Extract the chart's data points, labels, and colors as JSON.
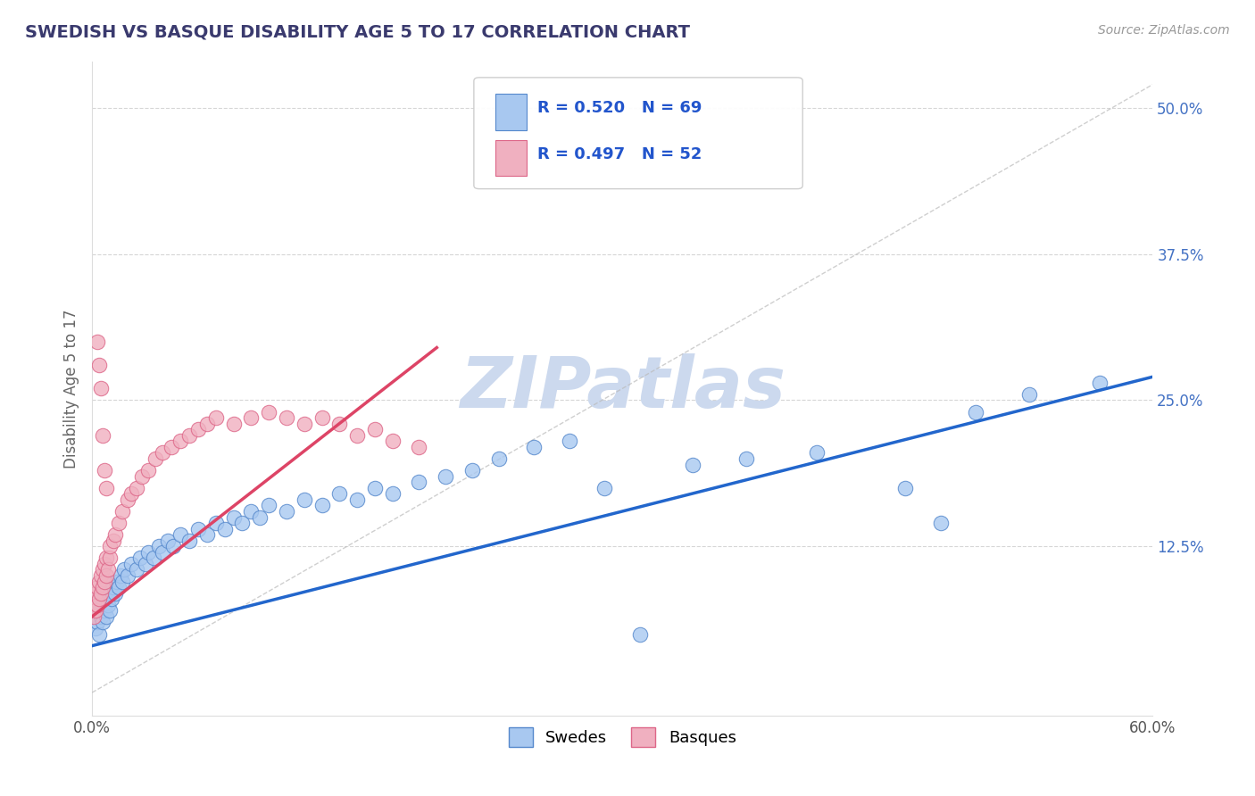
{
  "title": "SWEDISH VS BASQUE DISABILITY AGE 5 TO 17 CORRELATION CHART",
  "source_text": "Source: ZipAtlas.com",
  "ylabel": "Disability Age 5 to 17",
  "xlim": [
    0.0,
    0.6
  ],
  "ylim": [
    -0.02,
    0.54
  ],
  "ytick_labels": [
    "12.5%",
    "25.0%",
    "37.5%",
    "50.0%"
  ],
  "ytick_values": [
    0.125,
    0.25,
    0.375,
    0.5
  ],
  "title_color": "#3a3a6e",
  "title_fontsize": 14,
  "blue_color": "#a8c8f0",
  "pink_color": "#f0b0c0",
  "blue_edge": "#5588cc",
  "pink_edge": "#dd6688",
  "legend_R_blue": "R = 0.520",
  "legend_N_blue": "N = 69",
  "legend_R_pink": "R = 0.497",
  "legend_N_pink": "N = 52",
  "legend_label_blue": "Swedes",
  "legend_label_pink": "Basques",
  "blue_trend_x": [
    0.0,
    0.6
  ],
  "blue_trend_y": [
    0.04,
    0.27
  ],
  "pink_trend_x": [
    0.0,
    0.195
  ],
  "pink_trend_y": [
    0.065,
    0.295
  ],
  "ref_line_x": [
    0.0,
    0.6
  ],
  "ref_line_y": [
    0.0,
    0.52
  ],
  "background_color": "#ffffff",
  "grid_color": "#cccccc",
  "axis_label_color": "#666666",
  "watermark_color": "#ccd9ee",
  "watermark_text": "ZIPatlas",
  "source_color": "#999999",
  "tick_color": "#4472c4",
  "swedes_x": [
    0.002,
    0.003,
    0.004,
    0.004,
    0.005,
    0.005,
    0.006,
    0.006,
    0.007,
    0.007,
    0.008,
    0.008,
    0.009,
    0.009,
    0.01,
    0.01,
    0.011,
    0.012,
    0.013,
    0.014,
    0.015,
    0.016,
    0.017,
    0.018,
    0.02,
    0.022,
    0.025,
    0.027,
    0.03,
    0.032,
    0.035,
    0.038,
    0.04,
    0.043,
    0.046,
    0.05,
    0.055,
    0.06,
    0.065,
    0.07,
    0.075,
    0.08,
    0.085,
    0.09,
    0.095,
    0.1,
    0.11,
    0.12,
    0.13,
    0.14,
    0.15,
    0.16,
    0.17,
    0.185,
    0.2,
    0.215,
    0.23,
    0.25,
    0.27,
    0.29,
    0.31,
    0.34,
    0.37,
    0.41,
    0.46,
    0.5,
    0.53,
    0.57,
    0.48
  ],
  "swedes_y": [
    0.055,
    0.06,
    0.05,
    0.07,
    0.065,
    0.08,
    0.06,
    0.075,
    0.07,
    0.085,
    0.065,
    0.09,
    0.075,
    0.095,
    0.07,
    0.085,
    0.08,
    0.09,
    0.085,
    0.095,
    0.09,
    0.1,
    0.095,
    0.105,
    0.1,
    0.11,
    0.105,
    0.115,
    0.11,
    0.12,
    0.115,
    0.125,
    0.12,
    0.13,
    0.125,
    0.135,
    0.13,
    0.14,
    0.135,
    0.145,
    0.14,
    0.15,
    0.145,
    0.155,
    0.15,
    0.16,
    0.155,
    0.165,
    0.16,
    0.17,
    0.165,
    0.175,
    0.17,
    0.18,
    0.185,
    0.19,
    0.2,
    0.21,
    0.215,
    0.175,
    0.05,
    0.195,
    0.2,
    0.205,
    0.175,
    0.24,
    0.255,
    0.265,
    0.145
  ],
  "basques_x": [
    0.001,
    0.002,
    0.002,
    0.003,
    0.003,
    0.004,
    0.004,
    0.005,
    0.005,
    0.006,
    0.006,
    0.007,
    0.007,
    0.008,
    0.008,
    0.009,
    0.01,
    0.01,
    0.012,
    0.013,
    0.015,
    0.017,
    0.02,
    0.022,
    0.025,
    0.028,
    0.032,
    0.036,
    0.04,
    0.045,
    0.05,
    0.055,
    0.06,
    0.065,
    0.07,
    0.08,
    0.09,
    0.1,
    0.11,
    0.12,
    0.13,
    0.14,
    0.15,
    0.16,
    0.17,
    0.185,
    0.003,
    0.004,
    0.005,
    0.006,
    0.007,
    0.008
  ],
  "basques_y": [
    0.065,
    0.07,
    0.085,
    0.075,
    0.09,
    0.08,
    0.095,
    0.085,
    0.1,
    0.09,
    0.105,
    0.095,
    0.11,
    0.1,
    0.115,
    0.105,
    0.115,
    0.125,
    0.13,
    0.135,
    0.145,
    0.155,
    0.165,
    0.17,
    0.175,
    0.185,
    0.19,
    0.2,
    0.205,
    0.21,
    0.215,
    0.22,
    0.225,
    0.23,
    0.235,
    0.23,
    0.235,
    0.24,
    0.235,
    0.23,
    0.235,
    0.23,
    0.22,
    0.225,
    0.215,
    0.21,
    0.3,
    0.28,
    0.26,
    0.22,
    0.19,
    0.175
  ]
}
